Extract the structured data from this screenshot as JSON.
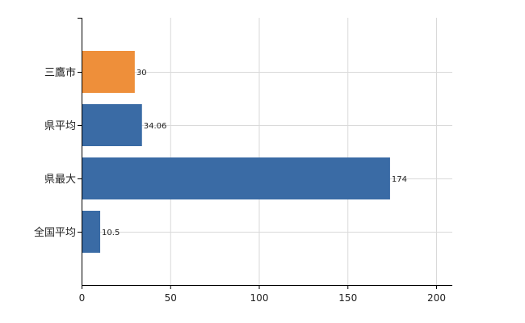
{
  "chart_data": {
    "type": "bar",
    "orientation": "horizontal",
    "categories": [
      "三鷹市",
      "県平均",
      "県最大",
      "全国平均"
    ],
    "values": [
      30,
      34.06,
      174,
      10.5
    ],
    "data_labels": [
      "30",
      "34.06",
      "174",
      "10.5"
    ],
    "xlim": [
      0,
      200
    ],
    "xticks": [
      0,
      50,
      100,
      150,
      200
    ],
    "xtick_labels": [
      "0",
      "50",
      "100",
      "150",
      "200"
    ],
    "grid": true,
    "legend": "none",
    "title": "",
    "xlabel": "",
    "ylabel": ""
  },
  "colors": {
    "highlight": "#EE8F3A",
    "default": "#3A6BA5",
    "grid": "#D9D9D9",
    "axis": "#000000"
  },
  "highlight_index": 0
}
